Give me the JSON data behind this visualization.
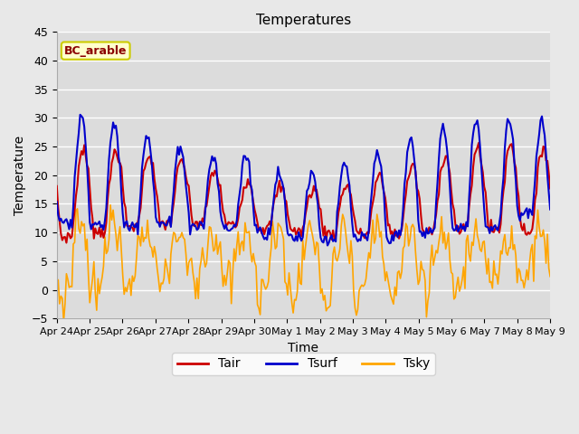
{
  "title": "Temperatures",
  "xlabel": "Time",
  "ylabel": "Temperature",
  "ylim": [
    -5,
    45
  ],
  "yticks": [
    -5,
    0,
    5,
    10,
    15,
    20,
    25,
    30,
    35,
    40,
    45
  ],
  "fig_bg_color": "#e8e8e8",
  "plot_bg_color": "#dcdcdc",
  "grid_color": "white",
  "label_box": "BC_arable",
  "label_box_facecolor": "#ffffcc",
  "label_box_edgecolor": "#cccc00",
  "label_text_color": "#8b0000",
  "line_colors": {
    "Tair": "#cc0000",
    "Tsurf": "#0000cc",
    "Tsky": "#ffa500"
  },
  "xtick_labels": [
    "Apr 24",
    "Apr 25",
    "Apr 26",
    "Apr 27",
    "Apr 28",
    "Apr 29",
    "Apr 30",
    "May 1",
    "May 2",
    "May 3",
    "May 4",
    "May 5",
    "May 6",
    "May 7",
    "May 8",
    "May 9"
  ],
  "n_points": 360,
  "n_days": 15,
  "legend_labels": [
    "Tair",
    "Tsurf",
    "Tsky"
  ]
}
